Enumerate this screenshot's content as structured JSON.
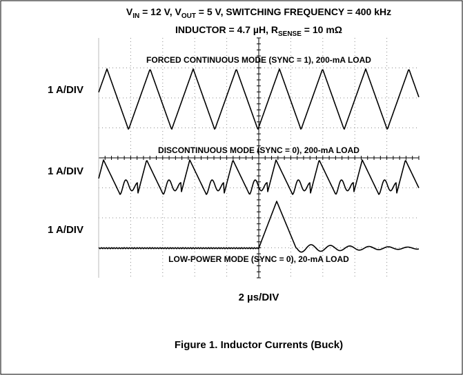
{
  "header": {
    "line1": [
      "V",
      "IN",
      " = 12 V, V",
      "OUT",
      " = 5 V, SWITCHING FREQUENCY = 400 kHz"
    ],
    "line2": [
      "INDUCTOR = 4.7 µH, R",
      "SENSE",
      " = 10 mΩ"
    ]
  },
  "traces": [
    {
      "label": "FORCED CONTINUOUS MODE (SYNC = 1), 200-mA LOAD",
      "scale": "1 A/DIV"
    },
    {
      "label": "DISCONTINUOUS MODE (SYNC = 0), 200-mA LOAD",
      "scale": "1 A/DIV"
    },
    {
      "label": "LOW-POWER MODE (SYNC = 0), 20-mA LOAD",
      "scale": "1 A/DIV"
    }
  ],
  "time_scale": "2 µs/DIV",
  "caption": "Figure 1. Inductor Currents (Buck)"
}
